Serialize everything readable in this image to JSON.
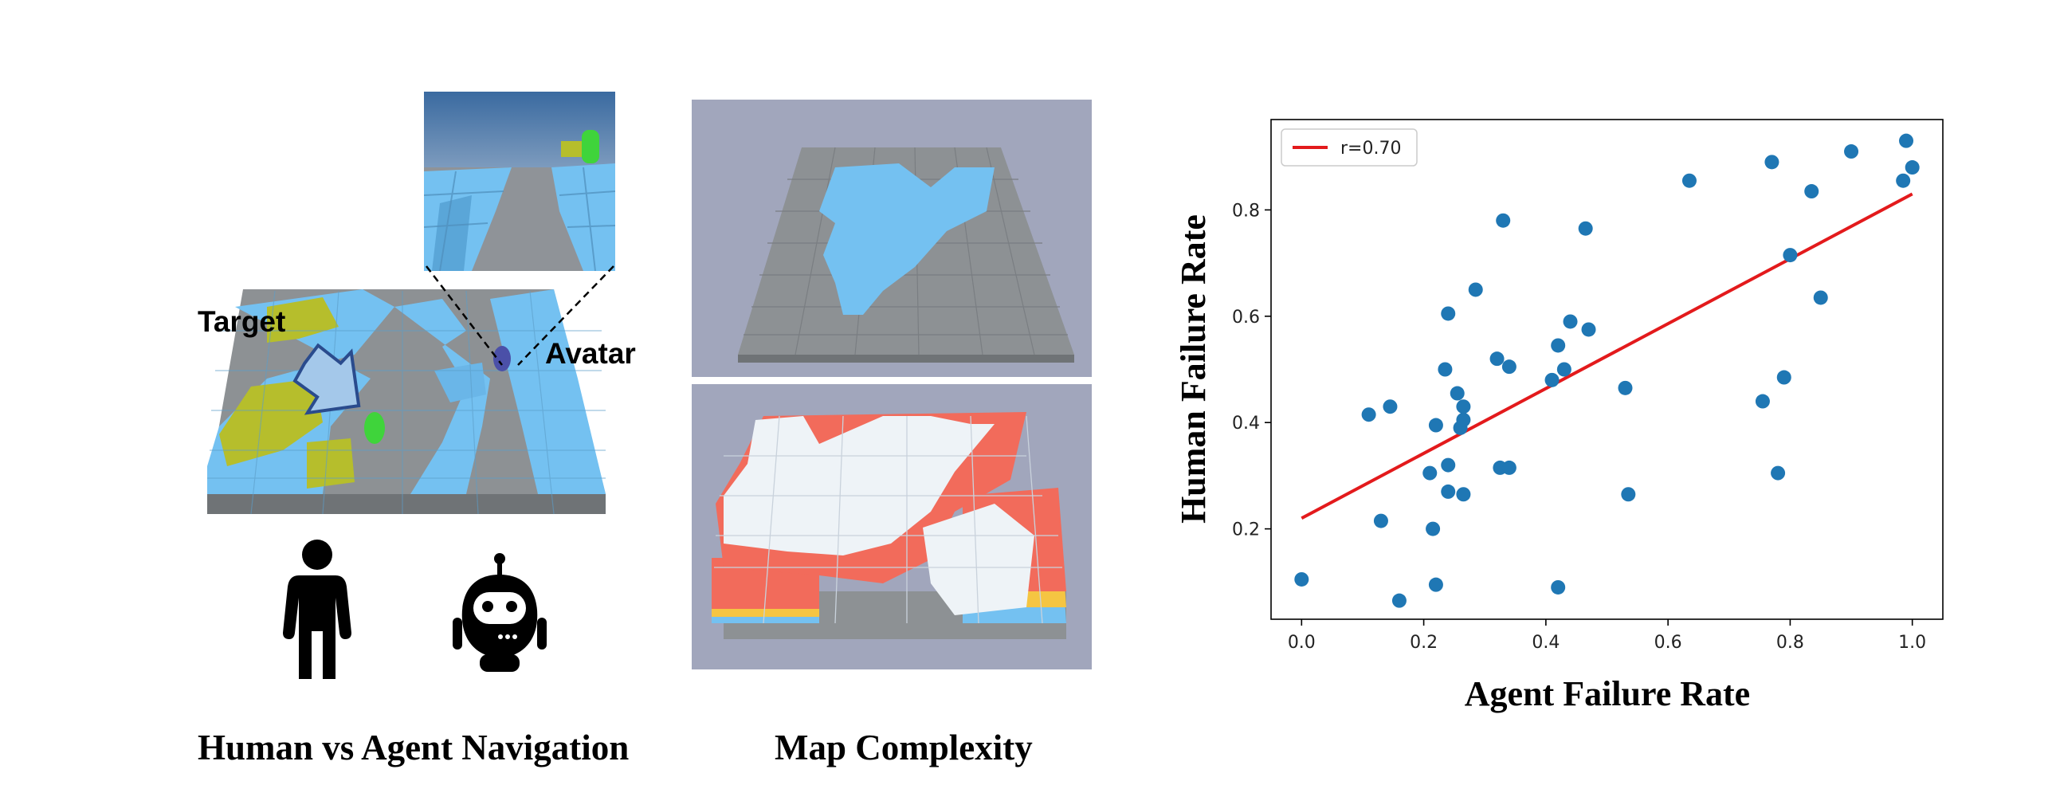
{
  "left_panel": {
    "target_label": "Target",
    "avatar_label": "Avatar",
    "caption": "Human vs Agent Navigation",
    "human_icon": "person-icon",
    "agent_icon": "robot-icon"
  },
  "middle_panel": {
    "caption": "Map Complexity"
  },
  "colors": {
    "floor": "#8e9296",
    "cube": "#73c1f2",
    "target_zone": "#b8c02e",
    "bg_panel": "#a2a7bd",
    "point": "#1f77b4",
    "fit_line": "#e31a1c"
  },
  "chart_data": {
    "type": "scatter",
    "xlabel": "Agent Failure Rate",
    "ylabel": "Human Failure Rate",
    "xlim": [
      -0.05,
      1.05
    ],
    "ylim": [
      0.03,
      0.97
    ],
    "xticks": [
      0.0,
      0.2,
      0.4,
      0.6,
      0.8,
      1.0
    ],
    "xtick_labels": [
      "0.0",
      "0.2",
      "0.4",
      "0.6",
      "0.8",
      "1.0"
    ],
    "yticks": [
      0.2,
      0.4,
      0.6,
      0.8
    ],
    "ytick_labels": [
      "0.2",
      "0.4",
      "0.6",
      "0.8"
    ],
    "legend": {
      "label": "r=0.70",
      "position": "top-left"
    },
    "fit_line": {
      "x": [
        0.0,
        1.0
      ],
      "y": [
        0.22,
        0.83
      ]
    },
    "points": [
      [
        0.0,
        0.105
      ],
      [
        0.11,
        0.415
      ],
      [
        0.13,
        0.215
      ],
      [
        0.145,
        0.43
      ],
      [
        0.16,
        0.065
      ],
      [
        0.21,
        0.305
      ],
      [
        0.215,
        0.2
      ],
      [
        0.22,
        0.395
      ],
      [
        0.22,
        0.095
      ],
      [
        0.235,
        0.5
      ],
      [
        0.24,
        0.605
      ],
      [
        0.24,
        0.32
      ],
      [
        0.24,
        0.27
      ],
      [
        0.255,
        0.455
      ],
      [
        0.26,
        0.39
      ],
      [
        0.265,
        0.405
      ],
      [
        0.265,
        0.43
      ],
      [
        0.265,
        0.265
      ],
      [
        0.285,
        0.65
      ],
      [
        0.32,
        0.52
      ],
      [
        0.325,
        0.315
      ],
      [
        0.33,
        0.78
      ],
      [
        0.34,
        0.505
      ],
      [
        0.34,
        0.315
      ],
      [
        0.41,
        0.48
      ],
      [
        0.42,
        0.545
      ],
      [
        0.42,
        0.09
      ],
      [
        0.43,
        0.5
      ],
      [
        0.44,
        0.59
      ],
      [
        0.465,
        0.765
      ],
      [
        0.47,
        0.575
      ],
      [
        0.53,
        0.465
      ],
      [
        0.535,
        0.265
      ],
      [
        0.635,
        0.855
      ],
      [
        0.755,
        0.44
      ],
      [
        0.77,
        0.89
      ],
      [
        0.78,
        0.305
      ],
      [
        0.79,
        0.485
      ],
      [
        0.8,
        0.715
      ],
      [
        0.835,
        0.835
      ],
      [
        0.85,
        0.635
      ],
      [
        0.9,
        0.91
      ],
      [
        0.985,
        0.855
      ],
      [
        0.99,
        0.93
      ],
      [
        1.0,
        0.88
      ]
    ]
  }
}
